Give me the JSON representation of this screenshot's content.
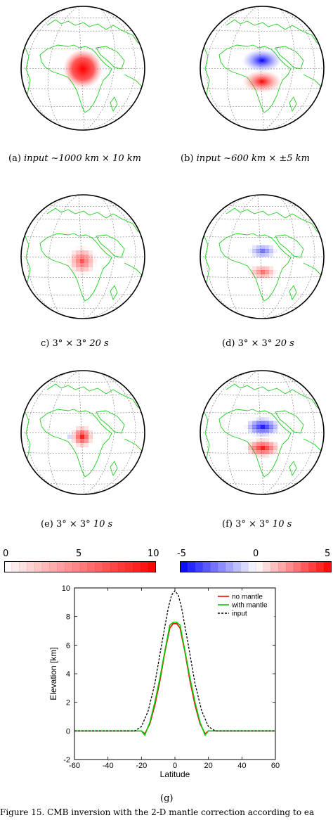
{
  "panels": [
    {
      "id": "a",
      "caption_prefix": "(a) ",
      "caption_italic": "input ~1000 km × 10 km",
      "anomaly": "single-smooth"
    },
    {
      "id": "b",
      "caption_prefix": "(b) ",
      "caption_italic": "input ~600 km × ±5 km",
      "anomaly": "dipole-smooth"
    },
    {
      "id": "c",
      "caption_prefix": "c) 3° × 3° ",
      "caption_italic": "20 s",
      "anomaly": "single-pixel"
    },
    {
      "id": "d",
      "caption_prefix": "(d) 3° × 3° ",
      "caption_italic": "20 s",
      "anomaly": "dipole-pixel-weak"
    },
    {
      "id": "e",
      "caption_prefix": "(e) 3° × 3° ",
      "caption_italic": "10 s",
      "anomaly": "single-pixel-sharp"
    },
    {
      "id": "f",
      "caption_prefix": "(f) 3° × 3° ",
      "caption_italic": "10 s",
      "anomaly": "dipole-pixel-strong"
    }
  ],
  "colorbars": {
    "left": {
      "min_label": "0",
      "mid_label": "5",
      "max_label": "10",
      "colors": [
        "#ffffff",
        "#ff0000"
      ]
    },
    "right": {
      "min_label": "-5",
      "mid_label": "0",
      "max_label": "5",
      "colors": [
        "#0000ff",
        "#ffffff",
        "#ff0000"
      ]
    }
  },
  "chart_data": {
    "type": "line",
    "xlabel": "Latitude",
    "ylabel": "Elevation [km]",
    "xlim": [
      -60,
      60
    ],
    "ylim": [
      -2,
      10
    ],
    "xticks": [
      "-60",
      "-40",
      "-20",
      "0",
      "20",
      "40",
      "60"
    ],
    "yticks": [
      "-2",
      "0",
      "2",
      "4",
      "6",
      "8",
      "10"
    ],
    "legend_position": "top-right",
    "series": [
      {
        "name": "no mantle",
        "color": "#ff0000",
        "dash": "solid",
        "x": [
          -60,
          -20,
          -18,
          -15,
          -12,
          -9,
          -6,
          -3,
          -1,
          0,
          1,
          3,
          6,
          9,
          12,
          15,
          18,
          20,
          60
        ],
        "y": [
          0,
          0,
          -0.2,
          0.5,
          1.8,
          3.5,
          5.5,
          7.2,
          7.5,
          7.5,
          7.5,
          7.2,
          5.5,
          3.5,
          1.8,
          0.5,
          -0.2,
          0,
          0
        ]
      },
      {
        "name": "with mantle",
        "color": "#00cc00",
        "dash": "solid",
        "x": [
          -60,
          -20,
          -18,
          -15,
          -12,
          -9,
          -6,
          -3,
          -1,
          0,
          1,
          3,
          6,
          9,
          12,
          15,
          18,
          20,
          60
        ],
        "y": [
          0,
          0,
          -0.3,
          0.6,
          2.0,
          3.7,
          5.6,
          7.4,
          7.6,
          7.6,
          7.6,
          7.4,
          5.6,
          3.7,
          2.0,
          0.6,
          -0.3,
          0,
          0
        ]
      },
      {
        "name": "input",
        "color": "#000000",
        "dash": "dashed",
        "x": [
          -60,
          -24,
          -20,
          -16,
          -12,
          -8,
          -4,
          -2,
          0,
          2,
          4,
          8,
          12,
          16,
          20,
          24,
          60
        ],
        "y": [
          0,
          0,
          0.3,
          1.4,
          3.3,
          6.0,
          8.6,
          9.5,
          9.8,
          9.5,
          8.6,
          6.0,
          3.3,
          1.4,
          0.3,
          0,
          0
        ]
      }
    ]
  },
  "chart_caption": "(g)",
  "footer": "Figure 15. CMB inversion with the 2-D mantle correction according to ea"
}
